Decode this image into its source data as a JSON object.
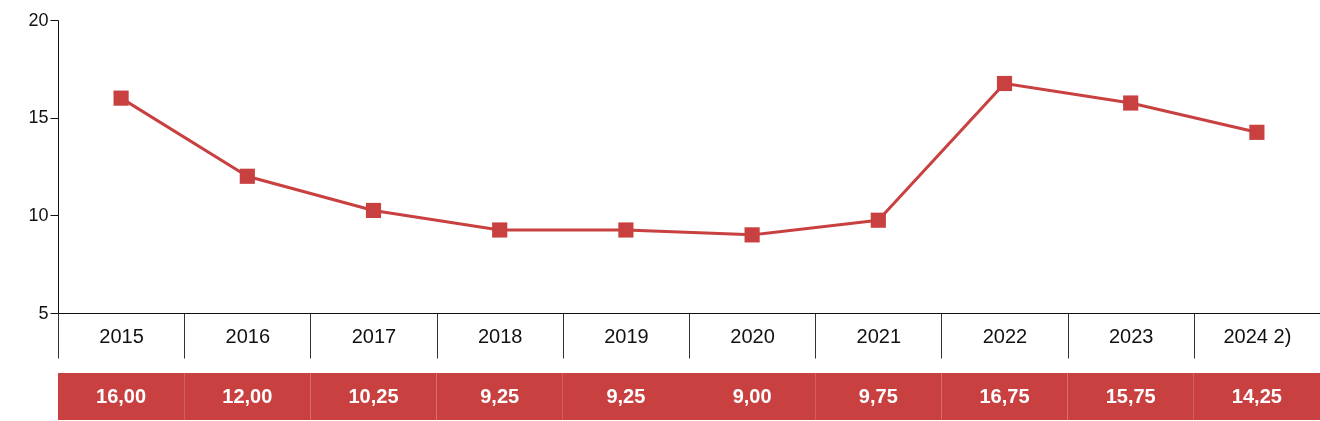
{
  "chart_data": {
    "type": "line",
    "categories": [
      "2015",
      "2016",
      "2017",
      "2018",
      "2019",
      "2020",
      "2021",
      "2022",
      "2023",
      "2024 2)"
    ],
    "values": [
      16.0,
      12.0,
      10.25,
      9.25,
      9.25,
      9.0,
      9.75,
      16.75,
      15.75,
      14.25
    ],
    "value_labels": [
      "16,00",
      "12,00",
      "10,25",
      "9,25",
      "9,25",
      "9,00",
      "9,75",
      "16,75",
      "15,75",
      "14,25"
    ],
    "color": "#c94040",
    "marker": "square",
    "line_style": "solid",
    "ylim": [
      5,
      20
    ],
    "yticks": [
      5,
      10,
      15,
      20
    ],
    "grid": false
  }
}
